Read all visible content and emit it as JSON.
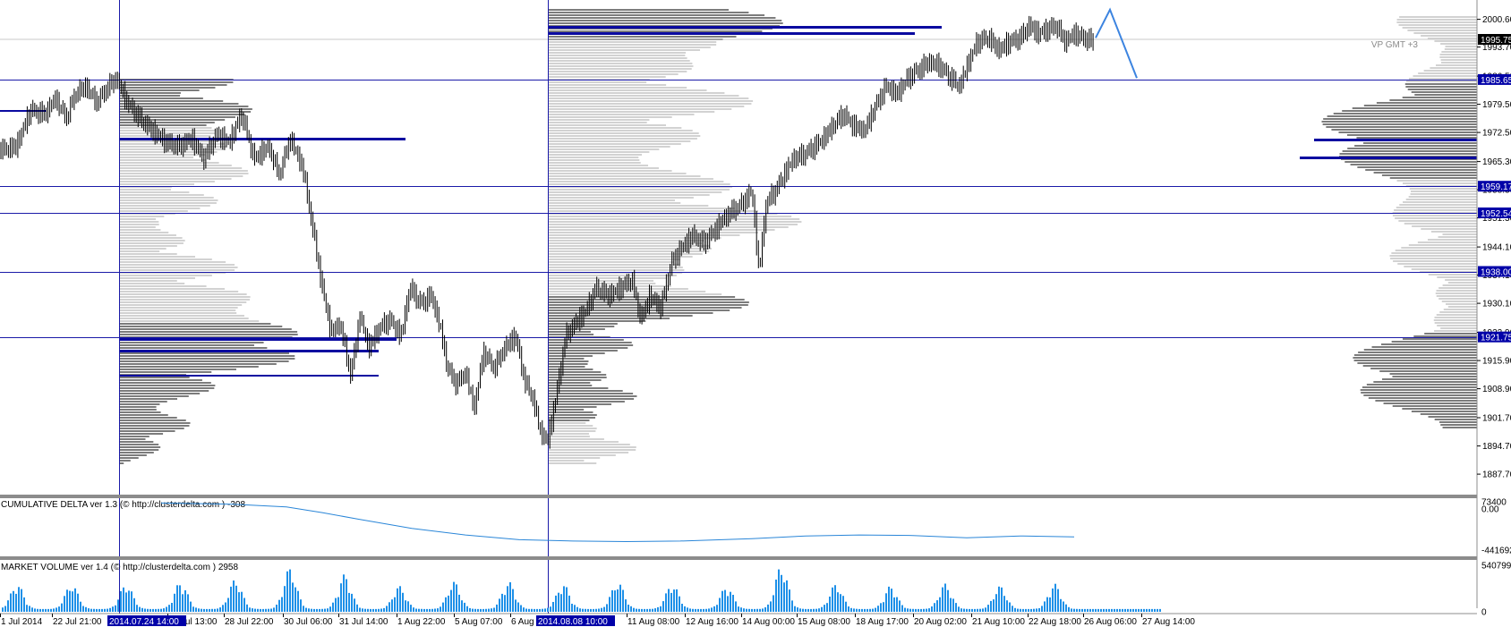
{
  "colors": {
    "background": "#ffffff",
    "level_line": "#1a1aa8",
    "tag_bg": "#0000a8",
    "current_tag_bg": "#000000",
    "candle": "#000000",
    "profile_light": "#d2d2d2",
    "profile_dark": "#7c7c7c",
    "poc": "#0a0aa0",
    "delta_line": "#2a86d8",
    "volume_bar": "#1e90e8",
    "projection": "#3c84e0",
    "separator": "#8c8c8c"
  },
  "chart_data": [
    {
      "type": "candlestick",
      "title": "",
      "overlay_label": "VP GMT +3",
      "current_price": "1995.75",
      "ylim": [
        1885.5,
        2004.5
      ],
      "y_ticks": [
        "2000.60",
        "1993.70",
        "1986.50",
        "1979.50",
        "1972.50",
        "1965.30",
        "1958.30",
        "1951.30",
        "1944.10",
        "1937.10",
        "1930.10",
        "1922.90",
        "1915.90",
        "1908.90",
        "1901.70",
        "1894.70",
        "1887.70"
      ],
      "level_tags": [
        "1985.65",
        "1959.17",
        "1952.54",
        "1938.00",
        "1921.75"
      ],
      "x_tick_labels": [
        "1 Jul 2014",
        "22 Jul 21:00",
        "25 Jul 13:00",
        "28 Jul 22:00",
        "30 Jul 06:00",
        "31 Jul 14:00",
        "1 Aug 22:00",
        "5 Aug 07:00",
        "6 Aug 15:00",
        "11 Aug 08:00",
        "12 Aug 16:00",
        "14 Aug 00:00",
        "15 Aug 08:00",
        "18 Aug 17:00",
        "20 Aug 02:00",
        "21 Aug 10:00",
        "22 Aug 18:00",
        "26 Aug 06:00",
        "27 Aug 14:00"
      ],
      "highlighted_dates": [
        "2014.07.24 14:00",
        "2014.08.08 10:00"
      ],
      "close_path": [
        [
          0,
          1968
        ],
        [
          18,
          1969
        ],
        [
          34,
          1978
        ],
        [
          50,
          1977
        ],
        [
          62,
          1981
        ],
        [
          74,
          1976
        ],
        [
          84,
          1982
        ],
        [
          96,
          1984
        ],
        [
          108,
          1980
        ],
        [
          118,
          1983
        ],
        [
          130,
          1986
        ],
        [
          142,
          1980
        ],
        [
          156,
          1976
        ],
        [
          170,
          1973
        ],
        [
          186,
          1970
        ],
        [
          200,
          1969
        ],
        [
          214,
          1971
        ],
        [
          228,
          1966
        ],
        [
          242,
          1972
        ],
        [
          256,
          1970
        ],
        [
          270,
          1977
        ],
        [
          284,
          1966
        ],
        [
          300,
          1969
        ],
        [
          312,
          1962
        ],
        [
          324,
          1971
        ],
        [
          338,
          1964
        ],
        [
          350,
          1948
        ],
        [
          360,
          1934
        ],
        [
          370,
          1923
        ],
        [
          380,
          1925
        ],
        [
          392,
          1912
        ],
        [
          402,
          1927
        ],
        [
          412,
          1919
        ],
        [
          424,
          1924
        ],
        [
          436,
          1926
        ],
        [
          448,
          1922
        ],
        [
          458,
          1934
        ],
        [
          470,
          1930
        ],
        [
          482,
          1932
        ],
        [
          492,
          1924
        ],
        [
          500,
          1914
        ],
        [
          510,
          1910
        ],
        [
          520,
          1913
        ],
        [
          530,
          1904
        ],
        [
          540,
          1918
        ],
        [
          552,
          1914
        ],
        [
          564,
          1919
        ],
        [
          576,
          1922
        ],
        [
          586,
          1911
        ],
        [
          596,
          1906
        ],
        [
          604,
          1898
        ],
        [
          612,
          1896
        ],
        [
          622,
          1908
        ],
        [
          632,
          1922
        ],
        [
          642,
          1925
        ],
        [
          654,
          1928
        ],
        [
          666,
          1934
        ],
        [
          680,
          1932
        ],
        [
          694,
          1934
        ],
        [
          706,
          1936
        ],
        [
          716,
          1926
        ],
        [
          726,
          1932
        ],
        [
          738,
          1929
        ],
        [
          750,
          1940
        ],
        [
          762,
          1944
        ],
        [
          774,
          1947
        ],
        [
          786,
          1945
        ],
        [
          798,
          1948
        ],
        [
          808,
          1951
        ],
        [
          818,
          1953
        ],
        [
          830,
          1955
        ],
        [
          840,
          1958
        ],
        [
          848,
          1938
        ],
        [
          856,
          1955
        ],
        [
          866,
          1958
        ],
        [
          876,
          1962
        ],
        [
          886,
          1966
        ],
        [
          898,
          1967
        ],
        [
          910,
          1969
        ],
        [
          920,
          1971
        ],
        [
          930,
          1974
        ],
        [
          942,
          1977
        ],
        [
          954,
          1974
        ],
        [
          966,
          1973
        ],
        [
          978,
          1979
        ],
        [
          990,
          1984
        ],
        [
          1002,
          1982
        ],
        [
          1014,
          1986
        ],
        [
          1026,
          1988
        ],
        [
          1038,
          1990
        ],
        [
          1050,
          1989
        ],
        [
          1062,
          1986
        ],
        [
          1072,
          1984
        ],
        [
          1082,
          1990
        ],
        [
          1092,
          1995
        ],
        [
          1104,
          1996
        ],
        [
          1116,
          1993
        ],
        [
          1128,
          1995
        ],
        [
          1140,
          1996
        ],
        [
          1150,
          1999
        ],
        [
          1160,
          1997
        ],
        [
          1170,
          1998
        ],
        [
          1180,
          1999
        ],
        [
          1190,
          1995
        ],
        [
          1200,
          1997
        ],
        [
          1210,
          1996
        ],
        [
          1222,
          1995
        ]
      ],
      "projection_path": [
        [
          1224,
          1996
        ],
        [
          1240,
          2003
        ],
        [
          1270,
          1986
        ]
      ],
      "horizontal_levels": [
        1985.65,
        1959.17,
        1952.54,
        1938.0,
        1921.75
      ],
      "vertical_markers": [
        "2014.07.24 14:00",
        "2014.08.08 10:00"
      ]
    },
    {
      "type": "line",
      "title": "CUMULATIVE DELTA ver 1.3 (© http://clusterdelta.com ) -308",
      "y_ticks": [
        "73400",
        "0.00",
        "-441692"
      ],
      "ylim": [
        -470000,
        85000
      ],
      "path": [
        [
          180,
          62000
        ],
        [
          260,
          50000
        ],
        [
          320,
          20000
        ],
        [
          360,
          -40000
        ],
        [
          400,
          -110000
        ],
        [
          460,
          -210000
        ],
        [
          520,
          -280000
        ],
        [
          580,
          -330000
        ],
        [
          640,
          -345000
        ],
        [
          700,
          -350000
        ],
        [
          760,
          -345000
        ],
        [
          840,
          -320000
        ],
        [
          900,
          -290000
        ],
        [
          960,
          -280000
        ],
        [
          1020,
          -285000
        ],
        [
          1080,
          -310000
        ],
        [
          1140,
          -290000
        ],
        [
          1200,
          -300000
        ]
      ]
    },
    {
      "type": "bar",
      "title": "MARKET VOLUME ver 1.4 (© http://clusterdelta.com ) 2958",
      "y_ticks": [
        "540799",
        "0"
      ],
      "ylim": [
        0,
        540799
      ],
      "period_px": 61,
      "first_peak_px": 18,
      "peak_heights": [
        0.55,
        0.55,
        0.55,
        0.6,
        0.65,
        0.9,
        0.75,
        0.5,
        0.6,
        0.6,
        0.55,
        0.6,
        0.55,
        0.5,
        0.95,
        0.55,
        0.5,
        0.55,
        0.5,
        0.55
      ]
    }
  ]
}
